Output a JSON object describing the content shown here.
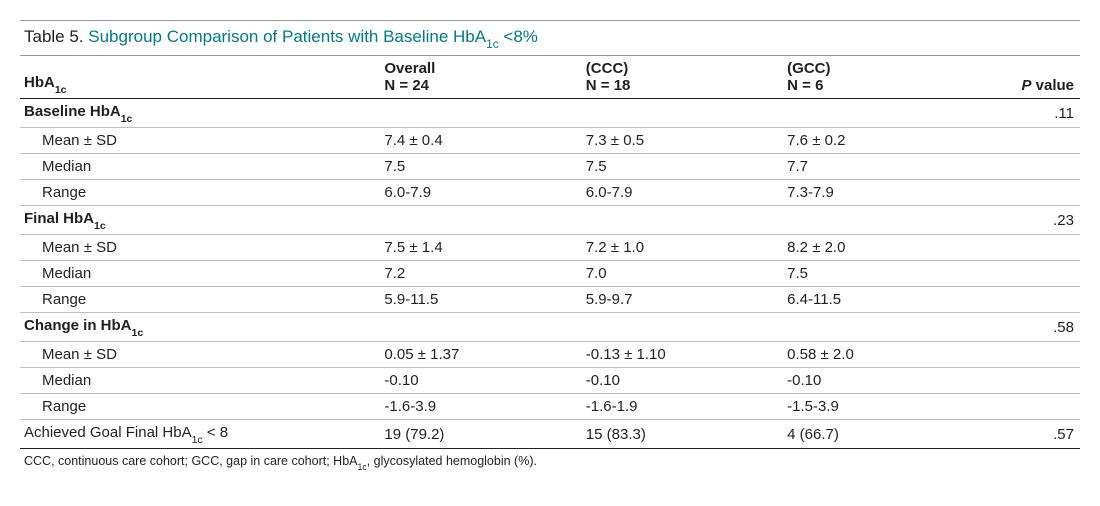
{
  "title": {
    "prefix": "Table 5. ",
    "main_a": "Subgroup Comparison of Patients with Baseline HbA",
    "main_sub": "1c",
    "main_b": " <8%"
  },
  "header": {
    "rowlabel_a": "HbA",
    "rowlabel_sub": "1c",
    "overall_top": "Overall",
    "overall_n": "N = 24",
    "ccc_top": "(CCC)",
    "ccc_n": "N = 18",
    "gcc_top": "(GCC)",
    "gcc_n": "N = 6",
    "pvalue_label_a": "P",
    "pvalue_label_b": " value"
  },
  "sections": [
    {
      "label_a": "Baseline HbA",
      "label_sub": "1c",
      "p": ".11",
      "rows": [
        {
          "label": "Mean ± SD",
          "overall": "7.4 ± 0.4",
          "ccc": "7.3 ± 0.5",
          "gcc": "7.6 ± 0.2",
          "p": ""
        },
        {
          "label": "Median",
          "overall": "7.5",
          "ccc": "7.5",
          "gcc": "7.7",
          "p": ""
        },
        {
          "label": "Range",
          "overall": "6.0-7.9",
          "ccc": "6.0-7.9",
          "gcc": "7.3-7.9",
          "p": ""
        }
      ]
    },
    {
      "label_a": "Final HbA",
      "label_sub": "1c",
      "p": ".23",
      "rows": [
        {
          "label": "Mean ± SD",
          "overall": "7.5 ± 1.4",
          "ccc": "7.2 ± 1.0",
          "gcc": "8.2 ± 2.0",
          "p": ""
        },
        {
          "label": "Median",
          "overall": "7.2",
          "ccc": "7.0",
          "gcc": "7.5",
          "p": ""
        },
        {
          "label": "Range",
          "overall": "5.9-11.5",
          "ccc": "5.9-9.7",
          "gcc": "6.4-11.5",
          "p": ""
        }
      ]
    },
    {
      "label_a": "Change in HbA",
      "label_sub": "1c",
      "p": ".58",
      "rows": [
        {
          "label": "Mean ± SD",
          "overall": "0.05 ± 1.37",
          "ccc": "-0.13 ± 1.10",
          "gcc": "0.58 ± 2.0",
          "p": ""
        },
        {
          "label": "Median",
          "overall": "-0.10",
          "ccc": "-0.10",
          "gcc": "-0.10",
          "p": ""
        },
        {
          "label": "Range",
          "overall": "-1.6-3.9",
          "ccc": "-1.6-1.9",
          "gcc": "-1.5-3.9",
          "p": ""
        }
      ]
    }
  ],
  "goal": {
    "label_a": "Achieved Goal Final HbA",
    "label_sub": "1c",
    "label_b": " < 8",
    "overall": "19 (79.2)",
    "ccc": "15 (83.3)",
    "gcc": "4 (66.7)",
    "p": ".57"
  },
  "footnote": {
    "a": "CCC, continuous care cohort; GCC, gap in care cohort; HbA",
    "sub": "1c",
    "b": ", glycosylated hemoglobin (%)."
  },
  "style": {
    "accent_color": "#007a87",
    "border_light": "#bcbec0",
    "border_med": "#939598",
    "border_dark": "#231f20"
  }
}
